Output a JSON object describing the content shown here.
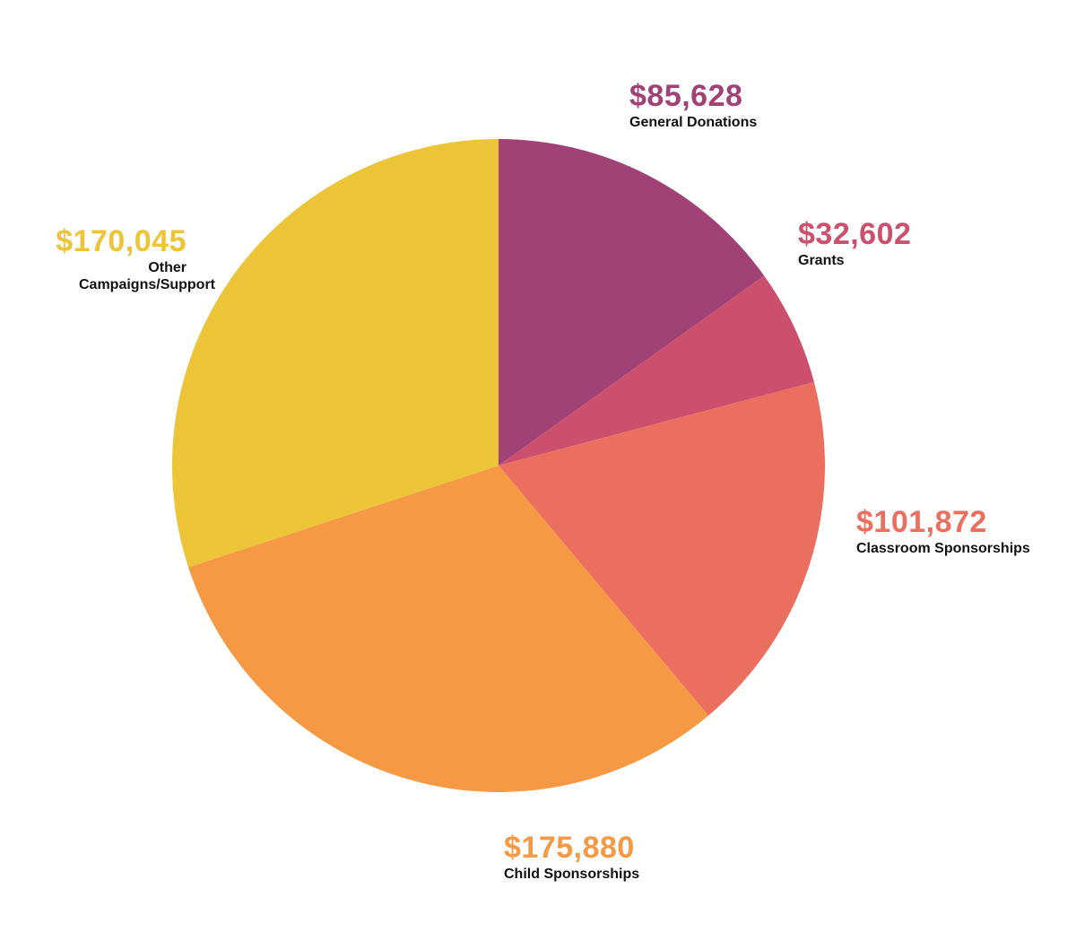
{
  "chart_data": {
    "type": "pie",
    "start_angle_deg": 0,
    "direction": "clockwise",
    "legend": "none",
    "slices": [
      {
        "label": "General Donations",
        "amount_text": "$85,628",
        "value": 85628,
        "color": "#A14277"
      },
      {
        "label": "Grants",
        "amount_text": "$32,602",
        "value": 32602,
        "color": "#CC506D"
      },
      {
        "label": "Classroom Sponsorships",
        "amount_text": "$101,872",
        "value": 101872,
        "color": "#EB6F5E"
      },
      {
        "label": "Child Sponsorships",
        "amount_text": "$175,880",
        "value": 175880,
        "color": "#F59944"
      },
      {
        "label": "Other Campaigns/Support",
        "amount_text": "$170,045",
        "value": 170045,
        "color": "#ECC438"
      }
    ]
  }
}
